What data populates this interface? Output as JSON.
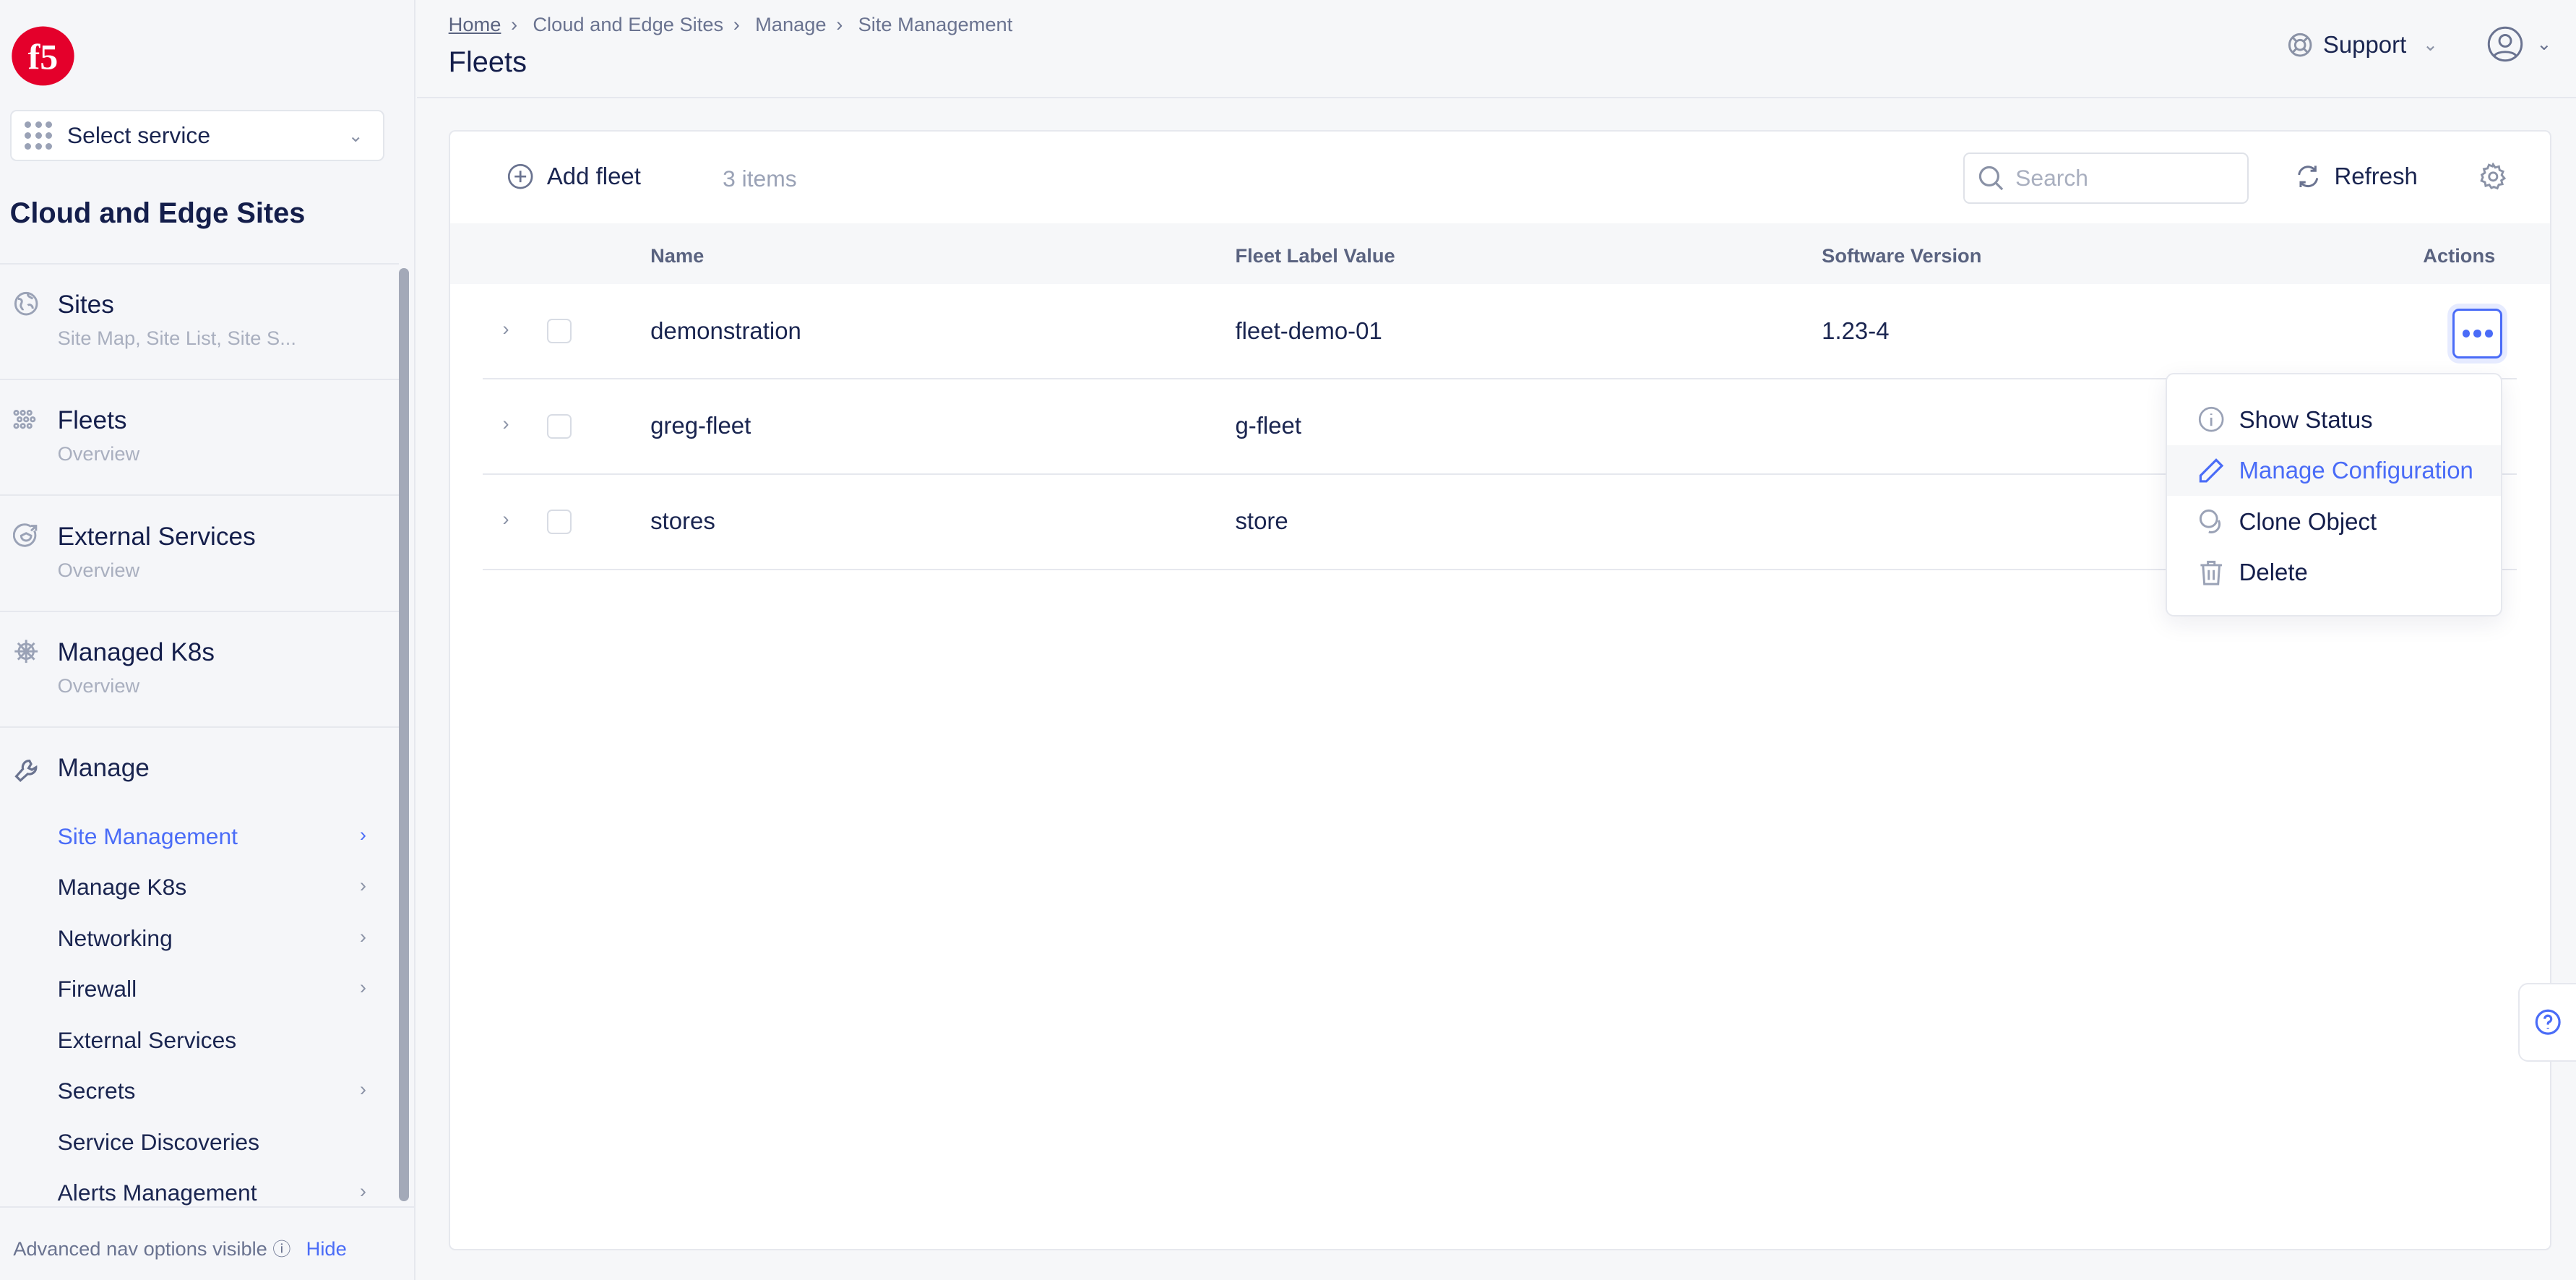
{
  "brand": {
    "logo_text": "f5",
    "color": "#e4002b"
  },
  "sidebar": {
    "service_select": "Select service",
    "service_title": "Cloud and Edge Sites",
    "sections": [
      {
        "title": "Sites",
        "subtitle": "Site Map, Site List, Site S...",
        "icon": "globe-icon"
      },
      {
        "title": "Fleets",
        "subtitle": "Overview",
        "icon": "fleet-icon"
      },
      {
        "title": "External Services",
        "subtitle": "Overview",
        "icon": "external-services-icon"
      },
      {
        "title": "Managed K8s",
        "subtitle": "Overview",
        "icon": "helm-icon"
      }
    ],
    "manage": {
      "title": "Manage",
      "icon": "wrench-icon",
      "items": [
        {
          "label": "Site Management",
          "arrow": true,
          "active": true
        },
        {
          "label": "Manage K8s",
          "arrow": true
        },
        {
          "label": "Networking",
          "arrow": true
        },
        {
          "label": "Firewall",
          "arrow": true
        },
        {
          "label": "External Services",
          "arrow": false
        },
        {
          "label": "Secrets",
          "arrow": true
        },
        {
          "label": "Service Discoveries",
          "arrow": false
        },
        {
          "label": "Alerts Management",
          "arrow": true
        }
      ]
    },
    "footer": {
      "text": "Advanced nav options visible",
      "hide": "Hide"
    }
  },
  "header": {
    "breadcrumb": [
      "Home",
      "Cloud and Edge Sites",
      "Manage",
      "Site Management"
    ],
    "title": "Fleets",
    "support": "Support"
  },
  "toolbar": {
    "add": "Add fleet",
    "count": "3 items",
    "search_placeholder": "Search",
    "refresh": "Refresh"
  },
  "table": {
    "columns": [
      "Name",
      "Fleet Label Value",
      "Software Version",
      "Actions"
    ],
    "rows": [
      {
        "name": "demonstration",
        "label": "fleet-demo-01",
        "version": "1.23-4"
      },
      {
        "name": "greg-fleet",
        "label": "g-fleet",
        "version": ""
      },
      {
        "name": "stores",
        "label": "store",
        "version": ""
      }
    ]
  },
  "action_menu": [
    {
      "label": "Show Status",
      "icon": "info-icon"
    },
    {
      "label": "Manage Configuration",
      "icon": "pencil-icon",
      "highlighted": true
    },
    {
      "label": "Clone Object",
      "icon": "clone-icon"
    },
    {
      "label": "Delete",
      "icon": "trash-icon"
    }
  ],
  "colors": {
    "accent": "#4a6cf7",
    "text": "#141e4b"
  }
}
